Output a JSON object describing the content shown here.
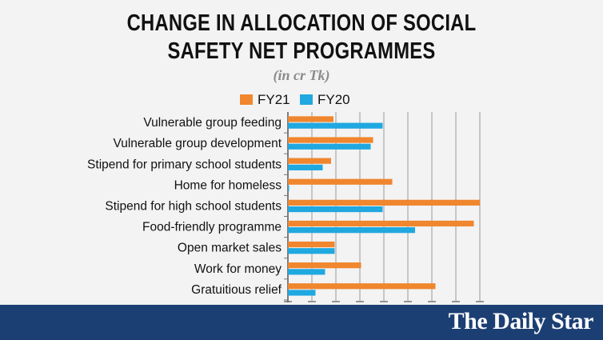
{
  "title_line1": "CHANGE IN ALLOCATION OF SOCIAL",
  "title_line2": "SAFETY NET PROGRAMMES",
  "subtitle": "(in cr Tk)",
  "brand": "The Daily Star",
  "colors": {
    "fy21": "#f0862e",
    "fy20": "#20a8e0",
    "footer": "#1c3f73"
  },
  "chart_data": {
    "type": "bar",
    "orientation": "horizontal",
    "title": "CHANGE IN ALLOCATION OF SOCIAL SAFETY NET PROGRAMMES",
    "subtitle": "(in cr Tk)",
    "categories": [
      "Vulnerable group feeding",
      "Vulnerable group development",
      "Stipend for primary school students",
      "Home for homeless",
      "Stipend for high school students",
      "Food-friendly programme",
      "Open market sales",
      "Work for money",
      "Gratuitious relief"
    ],
    "series": [
      {
        "name": "FY21",
        "values": [
          1900,
          3550,
          1800,
          4350,
          8000,
          7750,
          1950,
          3050,
          6150
        ]
      },
      {
        "name": "FY20",
        "values": [
          3950,
          3450,
          1450,
          50,
          3950,
          5300,
          1950,
          1550,
          1150
        ]
      }
    ],
    "xlim": [
      0,
      8000
    ],
    "grid": true,
    "legend": "top"
  }
}
